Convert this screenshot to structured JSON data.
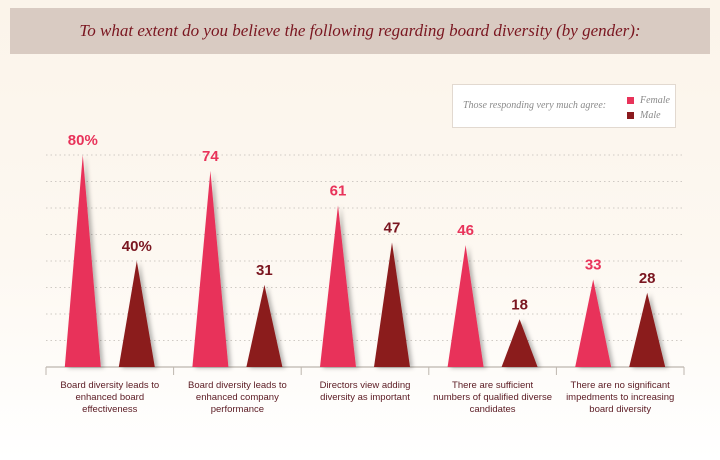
{
  "title": "To what extent do you believe the following regarding board diversity (by gender):",
  "legend": {
    "caption": "Those responding very much agree:",
    "items": [
      {
        "label": "Female",
        "color": "#e8335a"
      },
      {
        "label": "Male",
        "color": "#8b1a1e"
      }
    ]
  },
  "chart_data": {
    "type": "bar",
    "title": "To what extent do you believe the following regarding board diversity (by gender):",
    "categories": [
      "Board diversity leads to enhanced board effectiveness",
      "Board diversity leads to enhanced company performance",
      "Directors view adding diversity as important",
      "There are sufficient numbers of qualified diverse candidates",
      "There are no significant impedments to increasing board diversity"
    ],
    "series": [
      {
        "name": "Female",
        "values": [
          80,
          74,
          61,
          46,
          33
        ],
        "labels": [
          "80%",
          "74",
          "61",
          "46",
          "33"
        ],
        "color": "#e8335a",
        "label_color": "#e8335a"
      },
      {
        "name": "Male",
        "values": [
          40,
          31,
          47,
          18,
          28
        ],
        "labels": [
          "40%",
          "31",
          "47",
          "18",
          "28"
        ],
        "color": "#8b1a1e",
        "label_color": "#7a1620"
      }
    ],
    "ylim": [
      0,
      80
    ],
    "grid": true,
    "legend_position": "top-right"
  }
}
